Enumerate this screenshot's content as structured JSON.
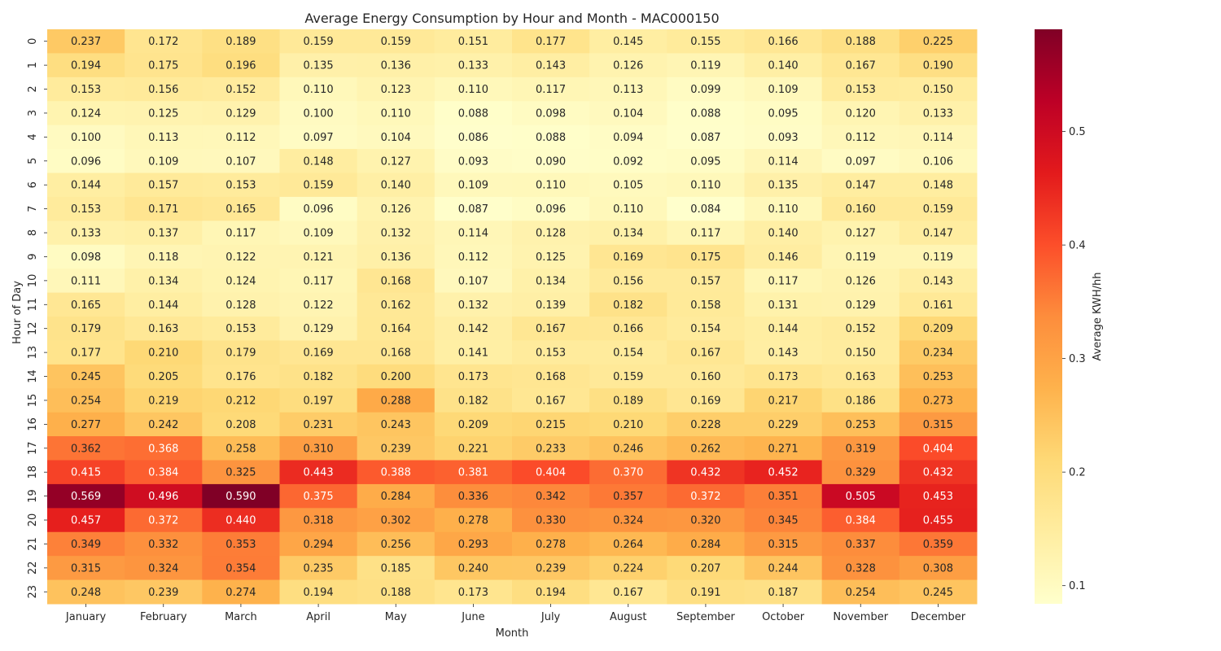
{
  "chart_data": {
    "type": "heatmap",
    "title": "Average Energy Consumption by Hour and Month - MAC000150",
    "xlabel": "Month",
    "ylabel": "Hour of Day",
    "colorbar_label": "Average KWH/hh",
    "colormap": "YlOrRd",
    "vmin": 0.084,
    "vmax": 0.59,
    "colorbar_ticks": [
      "0.1",
      "0.2",
      "0.3",
      "0.4",
      "0.5"
    ],
    "columns": [
      "January",
      "February",
      "March",
      "April",
      "May",
      "June",
      "July",
      "August",
      "September",
      "October",
      "November",
      "December"
    ],
    "rows": [
      "0",
      "1",
      "2",
      "3",
      "4",
      "5",
      "6",
      "7",
      "8",
      "9",
      "10",
      "11",
      "12",
      "13",
      "14",
      "15",
      "16",
      "17",
      "18",
      "19",
      "20",
      "21",
      "22",
      "23"
    ],
    "values": [
      [
        "0.237",
        "0.172",
        "0.189",
        "0.159",
        "0.159",
        "0.151",
        "0.177",
        "0.145",
        "0.155",
        "0.166",
        "0.188",
        "0.225"
      ],
      [
        "0.194",
        "0.175",
        "0.196",
        "0.135",
        "0.136",
        "0.133",
        "0.143",
        "0.126",
        "0.119",
        "0.140",
        "0.167",
        "0.190"
      ],
      [
        "0.153",
        "0.156",
        "0.152",
        "0.110",
        "0.123",
        "0.110",
        "0.117",
        "0.113",
        "0.099",
        "0.109",
        "0.153",
        "0.150"
      ],
      [
        "0.124",
        "0.125",
        "0.129",
        "0.100",
        "0.110",
        "0.088",
        "0.098",
        "0.104",
        "0.088",
        "0.095",
        "0.120",
        "0.133"
      ],
      [
        "0.100",
        "0.113",
        "0.112",
        "0.097",
        "0.104",
        "0.086",
        "0.088",
        "0.094",
        "0.087",
        "0.093",
        "0.112",
        "0.114"
      ],
      [
        "0.096",
        "0.109",
        "0.107",
        "0.148",
        "0.127",
        "0.093",
        "0.090",
        "0.092",
        "0.095",
        "0.114",
        "0.097",
        "0.106"
      ],
      [
        "0.144",
        "0.157",
        "0.153",
        "0.159",
        "0.140",
        "0.109",
        "0.110",
        "0.105",
        "0.110",
        "0.135",
        "0.147",
        "0.148"
      ],
      [
        "0.153",
        "0.171",
        "0.165",
        "0.096",
        "0.126",
        "0.087",
        "0.096",
        "0.110",
        "0.084",
        "0.110",
        "0.160",
        "0.159"
      ],
      [
        "0.133",
        "0.137",
        "0.117",
        "0.109",
        "0.132",
        "0.114",
        "0.128",
        "0.134",
        "0.117",
        "0.140",
        "0.127",
        "0.147"
      ],
      [
        "0.098",
        "0.118",
        "0.122",
        "0.121",
        "0.136",
        "0.112",
        "0.125",
        "0.169",
        "0.175",
        "0.146",
        "0.119",
        "0.119"
      ],
      [
        "0.111",
        "0.134",
        "0.124",
        "0.117",
        "0.168",
        "0.107",
        "0.134",
        "0.156",
        "0.157",
        "0.117",
        "0.126",
        "0.143"
      ],
      [
        "0.165",
        "0.144",
        "0.128",
        "0.122",
        "0.162",
        "0.132",
        "0.139",
        "0.182",
        "0.158",
        "0.131",
        "0.129",
        "0.161"
      ],
      [
        "0.179",
        "0.163",
        "0.153",
        "0.129",
        "0.164",
        "0.142",
        "0.167",
        "0.166",
        "0.154",
        "0.144",
        "0.152",
        "0.209"
      ],
      [
        "0.177",
        "0.210",
        "0.179",
        "0.169",
        "0.168",
        "0.141",
        "0.153",
        "0.154",
        "0.167",
        "0.143",
        "0.150",
        "0.234"
      ],
      [
        "0.245",
        "0.205",
        "0.176",
        "0.182",
        "0.200",
        "0.173",
        "0.168",
        "0.159",
        "0.160",
        "0.173",
        "0.163",
        "0.253"
      ],
      [
        "0.254",
        "0.219",
        "0.212",
        "0.197",
        "0.288",
        "0.182",
        "0.167",
        "0.189",
        "0.169",
        "0.217",
        "0.186",
        "0.273"
      ],
      [
        "0.277",
        "0.242",
        "0.208",
        "0.231",
        "0.243",
        "0.209",
        "0.215",
        "0.210",
        "0.228",
        "0.229",
        "0.253",
        "0.315"
      ],
      [
        "0.362",
        "0.368",
        "0.258",
        "0.310",
        "0.239",
        "0.221",
        "0.233",
        "0.246",
        "0.262",
        "0.271",
        "0.319",
        "0.404"
      ],
      [
        "0.415",
        "0.384",
        "0.325",
        "0.443",
        "0.388",
        "0.381",
        "0.404",
        "0.370",
        "0.432",
        "0.452",
        "0.329",
        "0.432"
      ],
      [
        "0.569",
        "0.496",
        "0.590",
        "0.375",
        "0.284",
        "0.336",
        "0.342",
        "0.357",
        "0.372",
        "0.351",
        "0.505",
        "0.453"
      ],
      [
        "0.457",
        "0.372",
        "0.440",
        "0.318",
        "0.302",
        "0.278",
        "0.330",
        "0.324",
        "0.320",
        "0.345",
        "0.384",
        "0.455"
      ],
      [
        "0.349",
        "0.332",
        "0.353",
        "0.294",
        "0.256",
        "0.293",
        "0.278",
        "0.264",
        "0.284",
        "0.315",
        "0.337",
        "0.359"
      ],
      [
        "0.315",
        "0.324",
        "0.354",
        "0.235",
        "0.185",
        "0.240",
        "0.239",
        "0.224",
        "0.207",
        "0.244",
        "0.328",
        "0.308"
      ],
      [
        "0.248",
        "0.239",
        "0.274",
        "0.194",
        "0.188",
        "0.173",
        "0.194",
        "0.167",
        "0.191",
        "0.187",
        "0.254",
        "0.245"
      ]
    ]
  }
}
